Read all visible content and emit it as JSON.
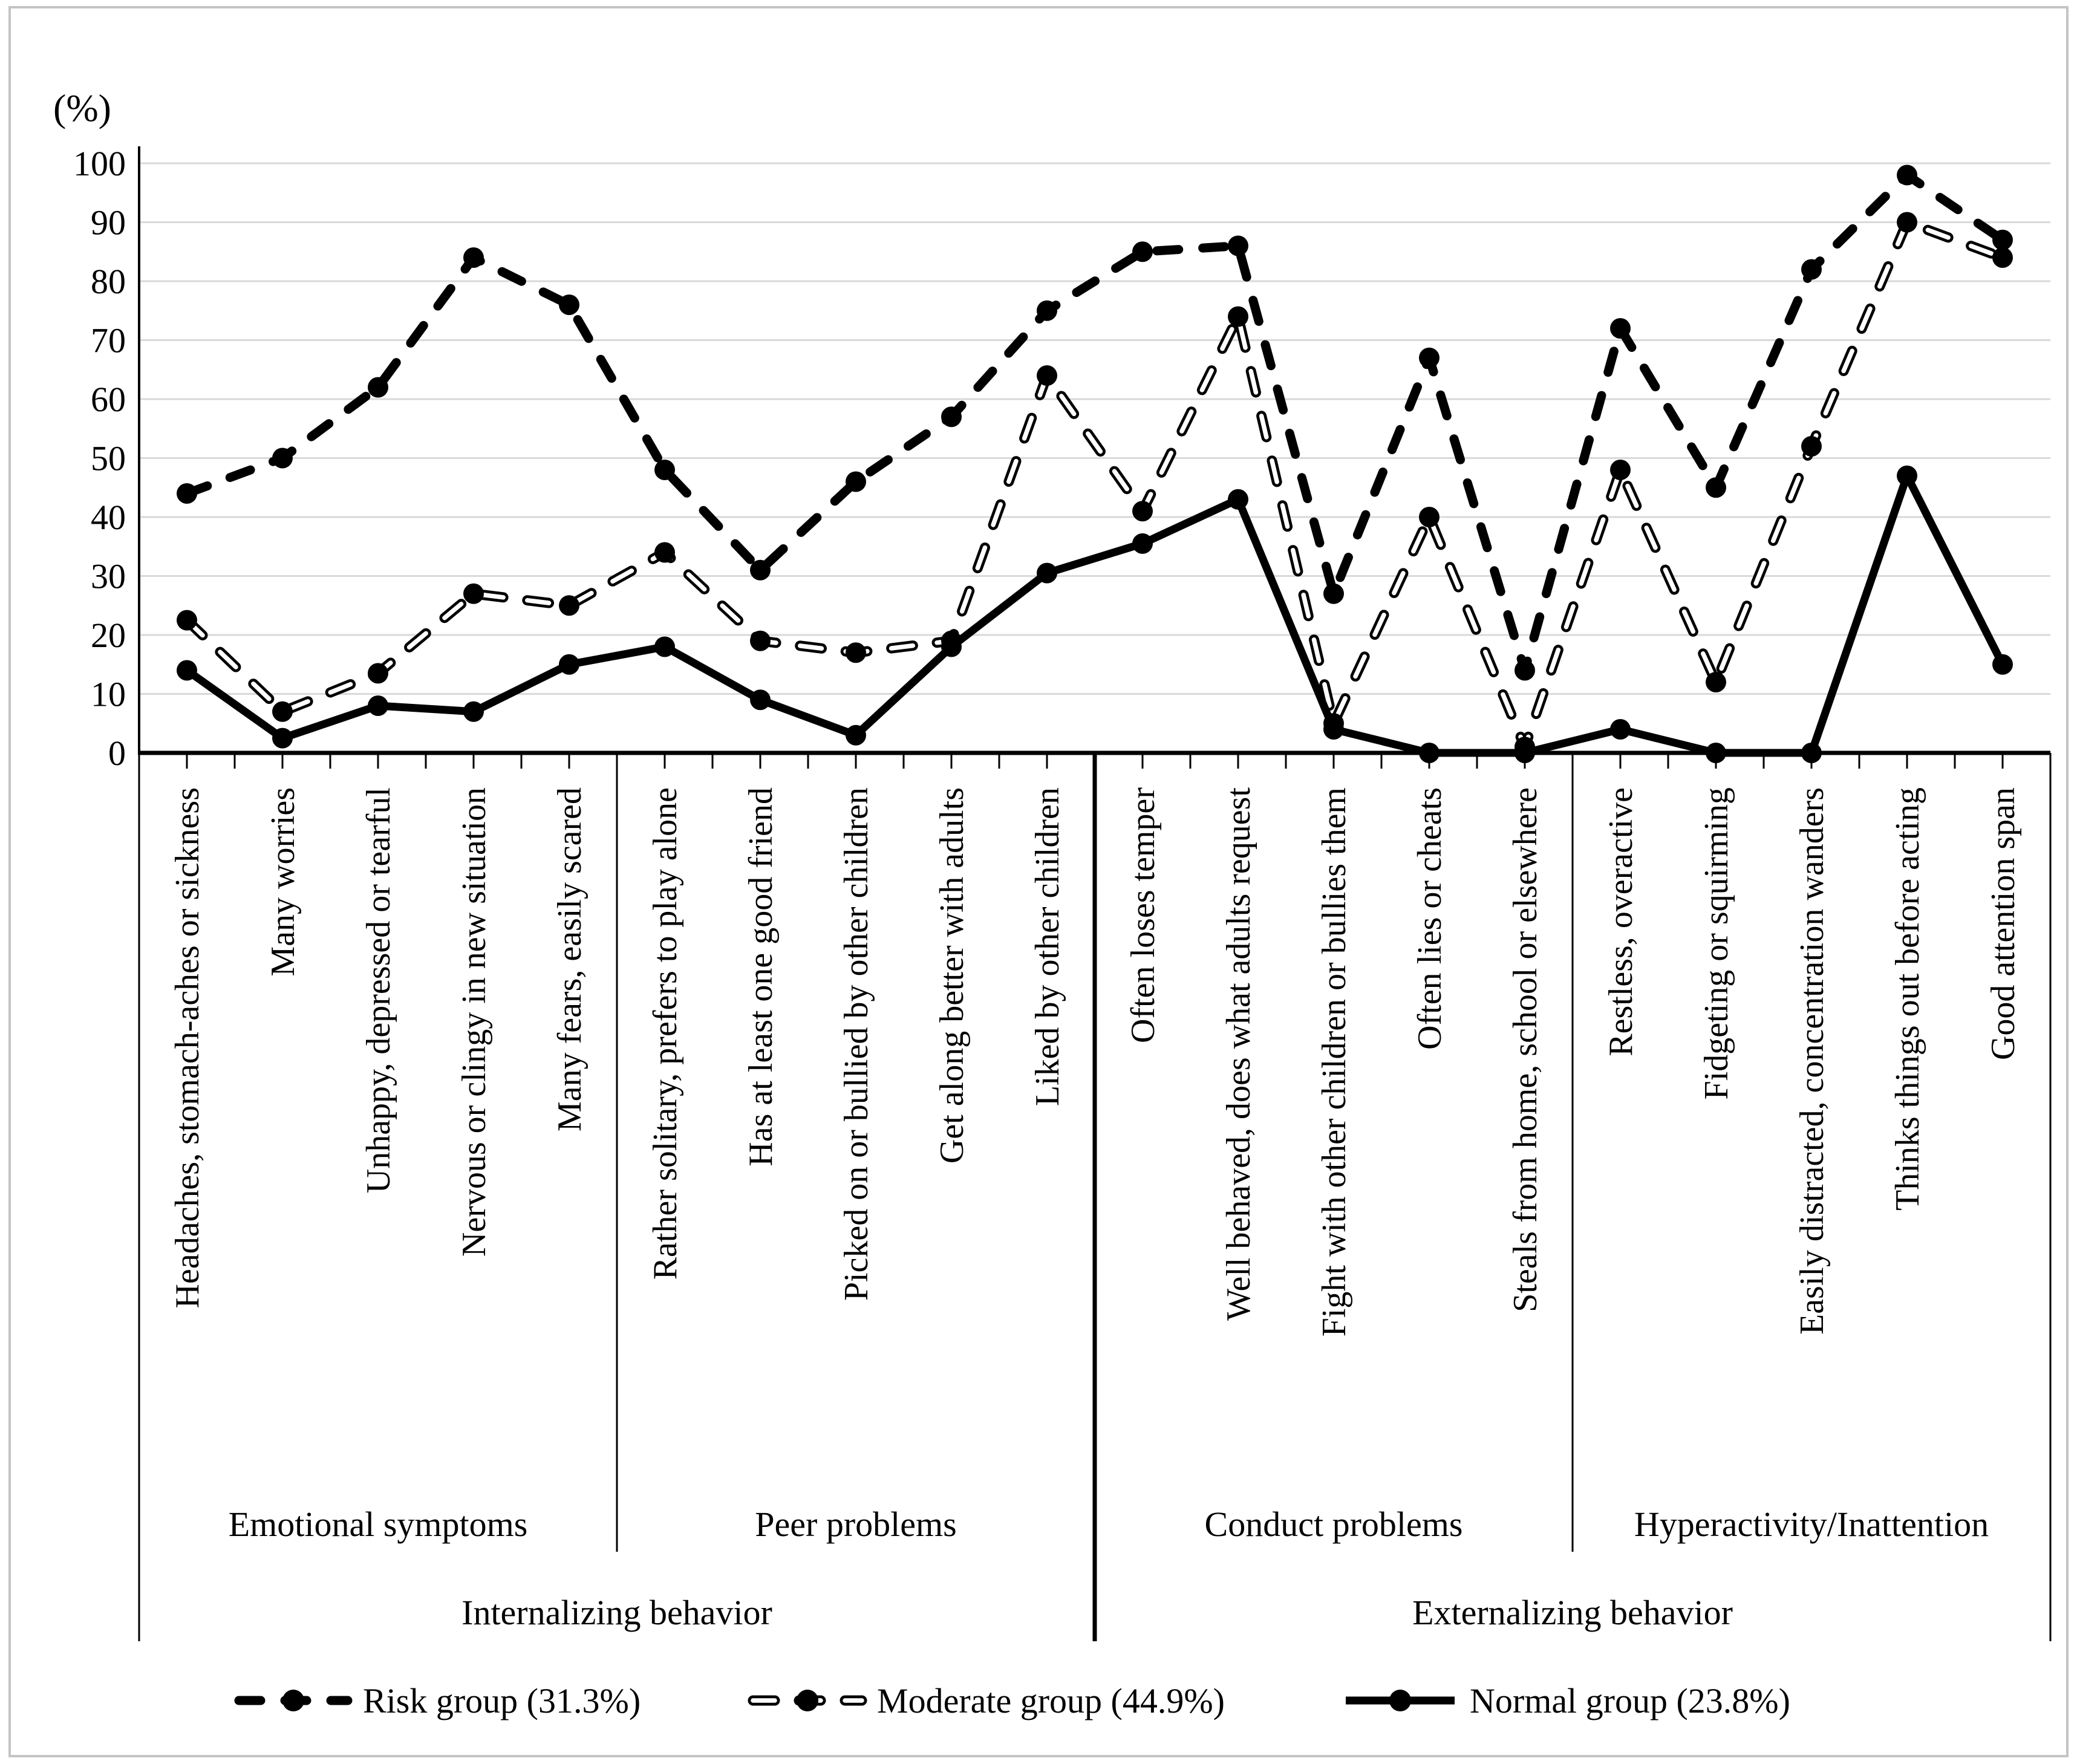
{
  "figure": {
    "ylabel": "(%)",
    "background_color": "#ffffff",
    "line_color": "#000000",
    "grid_color": "#d9d9d9",
    "border_color": "#c4c4c4"
  },
  "chart_data": {
    "type": "line",
    "title": "",
    "xlabel": "",
    "ylabel": "(%)",
    "ylim": [
      0,
      100
    ],
    "yticks": [
      0,
      10,
      20,
      30,
      40,
      50,
      60,
      70,
      80,
      90,
      100
    ],
    "grid": true,
    "legend_position": "bottom",
    "categories": [
      "Headaches, stomach-aches or sickness",
      "Many worries",
      "Unhappy, depressed or tearful",
      "Nervous or clingy in new situation",
      "Many fears, easily scared",
      "Rather solitary, prefers to play alone",
      "Has at least one good friend",
      "Picked on or bullied by other children",
      "Get along better with adults",
      "Liked by other children",
      "Often loses temper",
      "Well behaved, does what adults request",
      "Fight with other children or bullies them",
      "Often lies or cheats",
      "Steals from home, school or elsewhere",
      "Restless, overactive",
      "Fidgeting or squirming",
      "Easily distracted, concentration wanders",
      "Thinks things out before acting",
      "Good attention span"
    ],
    "series": [
      {
        "name": "Risk group (31.3%)",
        "style": "bold-dashed",
        "values": [
          44,
          50,
          62,
          84,
          76,
          48,
          31,
          46,
          57,
          75,
          85,
          86,
          27,
          67,
          14,
          72,
          45,
          82,
          98,
          87
        ]
      },
      {
        "name": "Moderate group (44.9%)",
        "style": "open-dashed",
        "values": [
          22.5,
          7,
          13.5,
          27,
          25,
          34,
          19,
          17,
          19,
          64,
          41,
          74,
          5,
          40,
          1,
          48,
          12,
          52,
          90,
          84
        ]
      },
      {
        "name": "Normal group (23.8%)",
        "style": "solid",
        "values": [
          14,
          2.5,
          8,
          7,
          15,
          18,
          9,
          3,
          18,
          30.5,
          35.5,
          43,
          4,
          0,
          0,
          4,
          0,
          0,
          47,
          15
        ]
      }
    ],
    "group_rows": [
      {
        "groups": [
          {
            "label": "Emotional symptoms",
            "span": [
              0,
              5
            ]
          },
          {
            "label": "Peer problems",
            "span": [
              5,
              10
            ]
          },
          {
            "label": "Conduct problems",
            "span": [
              10,
              15
            ]
          },
          {
            "label": "Hyperactivity/Inattention",
            "span": [
              15,
              20
            ]
          }
        ]
      },
      {
        "groups": [
          {
            "label": "Internalizing behavior",
            "span": [
              0,
              10
            ]
          },
          {
            "label": "Externalizing behavior",
            "span": [
              10,
              20
            ]
          }
        ]
      }
    ]
  },
  "legend": {
    "items": [
      {
        "label": "Risk group (31.3%)",
        "style": "bold-dashed"
      },
      {
        "label": "Moderate group (44.9%)",
        "style": "open-dashed"
      },
      {
        "label": "Normal group (23.8%)",
        "style": "solid"
      }
    ]
  }
}
